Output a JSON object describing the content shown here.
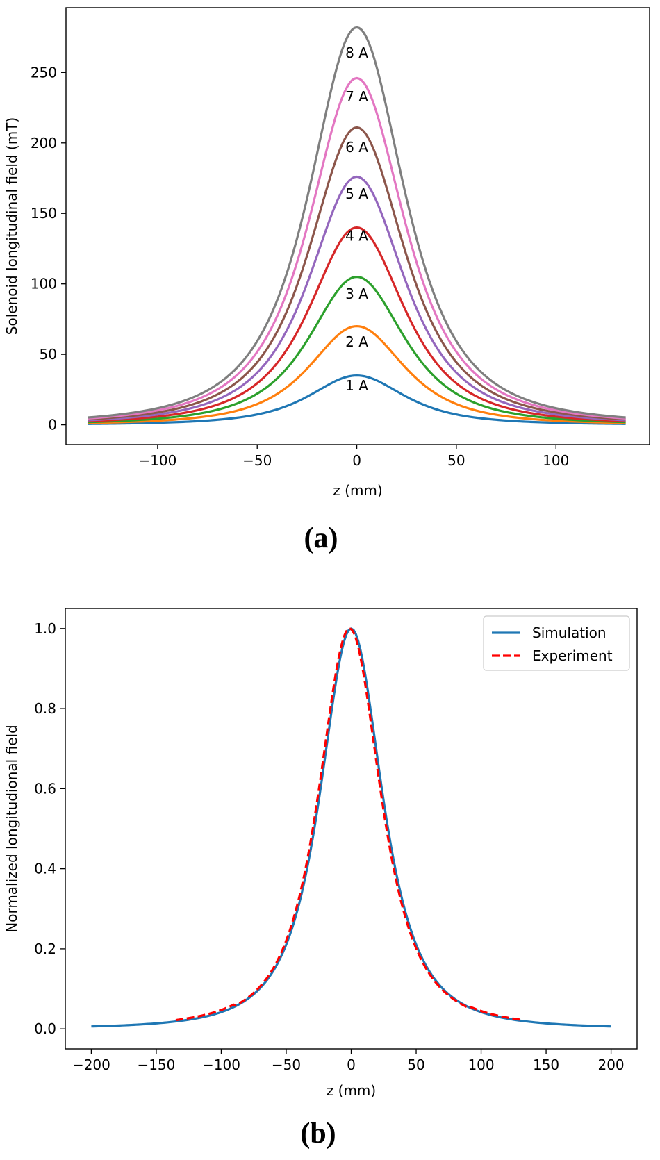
{
  "chart_data": [
    {
      "type": "line",
      "panel_label": "(a)",
      "title": "",
      "xlabel": "z (mm)",
      "ylabel": "Solenoid longitudinal field (mT)",
      "xlim": [
        -146,
        147
      ],
      "ylim": [
        -14,
        296
      ],
      "xticks": [
        -100,
        -50,
        0,
        50,
        100
      ],
      "yticks": [
        0,
        50,
        100,
        150,
        200,
        250
      ],
      "xtick_labels": [
        "−100",
        "−50",
        "0",
        "50",
        "100"
      ],
      "ytick_labels": [
        "0",
        "50",
        "100",
        "150",
        "200",
        "250"
      ],
      "grid": false,
      "legend": "none",
      "x_range": [
        -135,
        135
      ],
      "profile_width_mm": 37,
      "series": [
        {
          "name": "1 A",
          "peak": 35,
          "color": "#1f77b4",
          "label_value": 28
        },
        {
          "name": "2 A",
          "peak": 70,
          "color": "#ff7f0e",
          "label_value": 59
        },
        {
          "name": "3 A",
          "peak": 105,
          "color": "#2ca02c",
          "label_value": 93
        },
        {
          "name": "4 A",
          "peak": 140,
          "color": "#d62728",
          "label_value": 134
        },
        {
          "name": "5 A",
          "peak": 176,
          "color": "#9467bd",
          "label_value": 164
        },
        {
          "name": "6 A",
          "peak": 211,
          "color": "#8c564b",
          "label_value": 197
        },
        {
          "name": "7 A",
          "peak": 246,
          "color": "#e377c2",
          "label_value": 233
        },
        {
          "name": "8 A",
          "peak": 282,
          "color": "#7f7f7f",
          "label_value": 264
        }
      ]
    },
    {
      "type": "line",
      "panel_label": "(b)",
      "title": "",
      "xlabel": "z (mm)",
      "ylabel": "Normalized longitudional field",
      "xlim": [
        -220,
        220
      ],
      "ylim": [
        -0.05,
        1.05
      ],
      "xticks": [
        -200,
        -150,
        -100,
        -50,
        0,
        50,
        100,
        150,
        200
      ],
      "yticks": [
        0.0,
        0.2,
        0.4,
        0.6,
        0.8,
        1.0
      ],
      "xtick_labels": [
        "−200",
        "−150",
        "−100",
        "−50",
        "0",
        "50",
        "100",
        "150",
        "200"
      ],
      "ytick_labels": [
        "0.0",
        "0.2",
        "0.4",
        "0.6",
        "0.8",
        "1.0"
      ],
      "grid": false,
      "legend": "top-right",
      "profile_width_mm": 37,
      "series": [
        {
          "name": "Simulation",
          "style": "solid",
          "color": "#1f77b4",
          "x_range": [
            -200,
            200
          ]
        },
        {
          "name": "Experiment",
          "style": "dashed",
          "color": "#ff0000",
          "x_range": [
            -135,
            130
          ]
        }
      ]
    }
  ]
}
